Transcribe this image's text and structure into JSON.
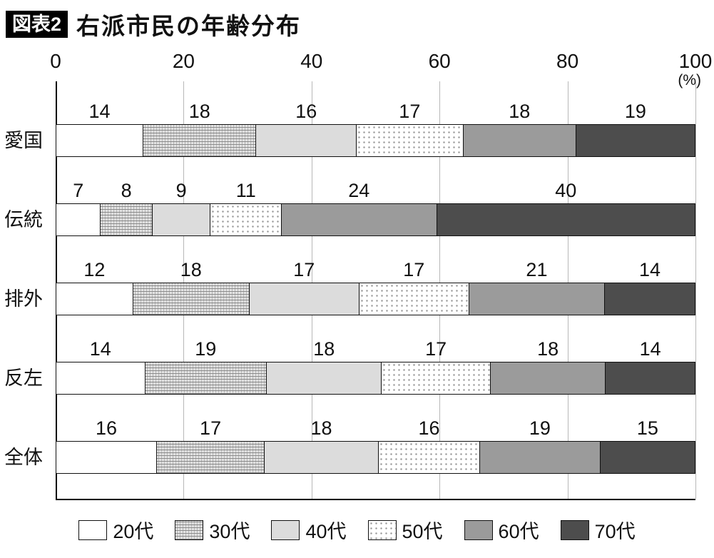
{
  "header": {
    "tag": "図表2",
    "title": "右派市民の年齢分布"
  },
  "chart_data": {
    "type": "bar",
    "stacked": true,
    "orientation": "horizontal",
    "title": "右派市民の年齢分布",
    "title_tag": "図表2",
    "unit": "%",
    "axis_unit_label": "(%)",
    "xlim": [
      0,
      100
    ],
    "x_ticks": [
      0,
      20,
      40,
      60,
      80,
      100
    ],
    "grid": true,
    "legend_position": "bottom",
    "categories": [
      "愛国",
      "伝統",
      "排外",
      "反左",
      "全体"
    ],
    "series": [
      {
        "name": "20代",
        "pattern": "plain",
        "fill": "#ffffff",
        "values": [
          14,
          7,
          12,
          14,
          16
        ]
      },
      {
        "name": "30代",
        "pattern": "hatch",
        "fill": "#cdcdcd",
        "values": [
          18,
          8,
          18,
          19,
          17
        ]
      },
      {
        "name": "40代",
        "pattern": "lightgray",
        "fill": "#dcdcdc",
        "values": [
          16,
          9,
          17,
          18,
          18
        ]
      },
      {
        "name": "50代",
        "pattern": "dots",
        "fill": "#ffffff",
        "values": [
          17,
          11,
          17,
          17,
          16
        ]
      },
      {
        "name": "60代",
        "pattern": "midgray",
        "fill": "#9b9b9b",
        "values": [
          18,
          24,
          21,
          18,
          19
        ]
      },
      {
        "name": "70代",
        "pattern": "darkgray",
        "fill": "#4d4d4d",
        "values": [
          19,
          40,
          14,
          14,
          15
        ]
      }
    ]
  }
}
